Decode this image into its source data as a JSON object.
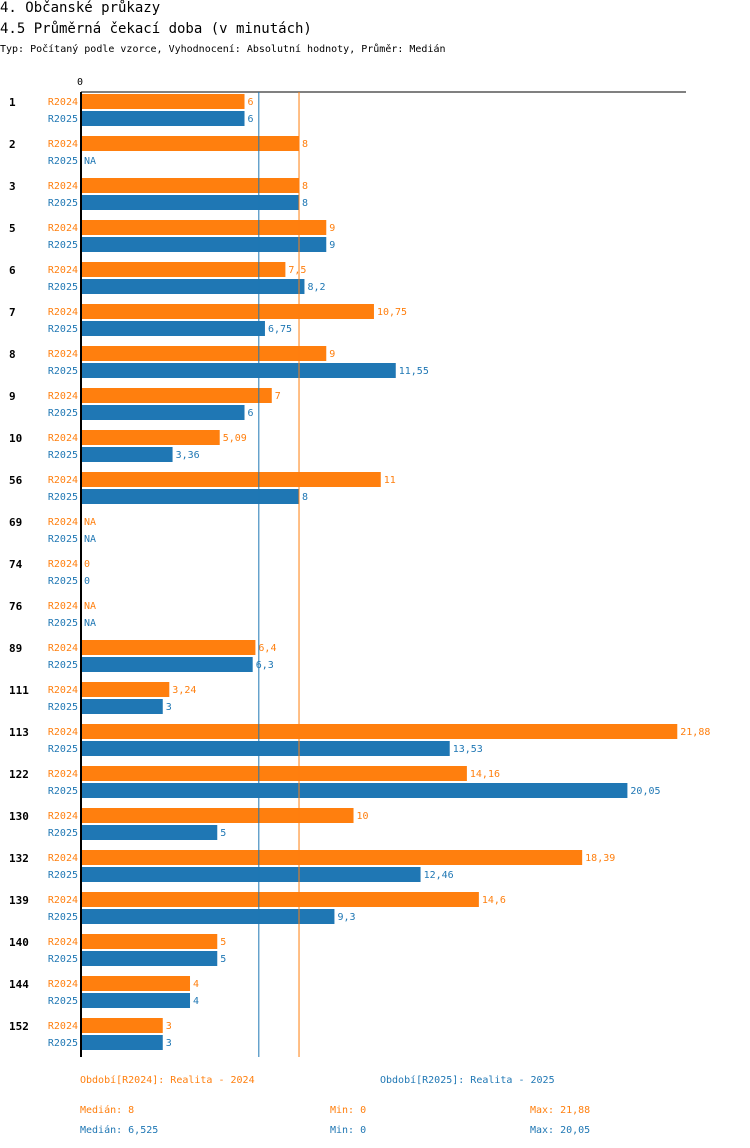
{
  "section_title": "4. Občanské průkazy",
  "chart_title": "4.5 Průměrná čekací doba (v minutách)",
  "subtitle": "Typ: Počítaný podle vzorce, Vyhodnocení: Absolutní hodnoty, Průměr: Medián",
  "colors": {
    "r2024": "#ff7f0e",
    "r2025": "#1f77b4"
  },
  "chart_data": {
    "type": "bar",
    "orientation": "horizontal",
    "axis_zero_label": "0",
    "xlim": [
      0,
      22.2
    ],
    "categories": [
      "1",
      "2",
      "3",
      "5",
      "6",
      "7",
      "8",
      "9",
      "10",
      "56",
      "69",
      "74",
      "76",
      "89",
      "111",
      "113",
      "122",
      "130",
      "132",
      "139",
      "140",
      "144",
      "152"
    ],
    "series": [
      {
        "name": "R2024",
        "values": [
          6,
          8,
          8,
          9,
          7.5,
          10.75,
          9,
          7,
          5.09,
          11,
          null,
          0,
          null,
          6.4,
          3.24,
          21.88,
          14.16,
          10,
          18.39,
          14.6,
          5,
          4,
          3
        ],
        "labels": [
          "6",
          "8",
          "8",
          "9",
          "7,5",
          "10,75",
          "9",
          "7",
          "5,09",
          "11",
          "NA",
          "0",
          "NA",
          "6,4",
          "3,24",
          "21,88",
          "14,16",
          "10",
          "18,39",
          "14,6",
          "5",
          "4",
          "3"
        ]
      },
      {
        "name": "R2025",
        "values": [
          6,
          null,
          8,
          9,
          8.2,
          6.75,
          11.55,
          6,
          3.36,
          8,
          null,
          0,
          null,
          6.3,
          3,
          13.53,
          20.05,
          5,
          12.46,
          9.3,
          5,
          4,
          3
        ],
        "labels": [
          "6",
          "NA",
          "8",
          "9",
          "8,2",
          "6,75",
          "11,55",
          "6",
          "3,36",
          "8",
          "NA",
          "0",
          "NA",
          "6,3",
          "3",
          "13,53",
          "20,05",
          "5",
          "12,46",
          "9,3",
          "5",
          "4",
          "3"
        ]
      }
    ],
    "reference_lines": [
      {
        "series": "R2025",
        "value": 6.525
      },
      {
        "series": "R2024",
        "value": 8
      }
    ]
  },
  "legend": {
    "r2024": {
      "title": "Období[R2024]: Realita - 2024",
      "median": "Medián: 8",
      "min": "Min: 0",
      "max": "Max: 21,88"
    },
    "r2025": {
      "title": "Období[R2025]: Realita - 2025",
      "median": "Medián: 6,525",
      "min": "Min: 0",
      "max": "Max: 20,05"
    }
  }
}
